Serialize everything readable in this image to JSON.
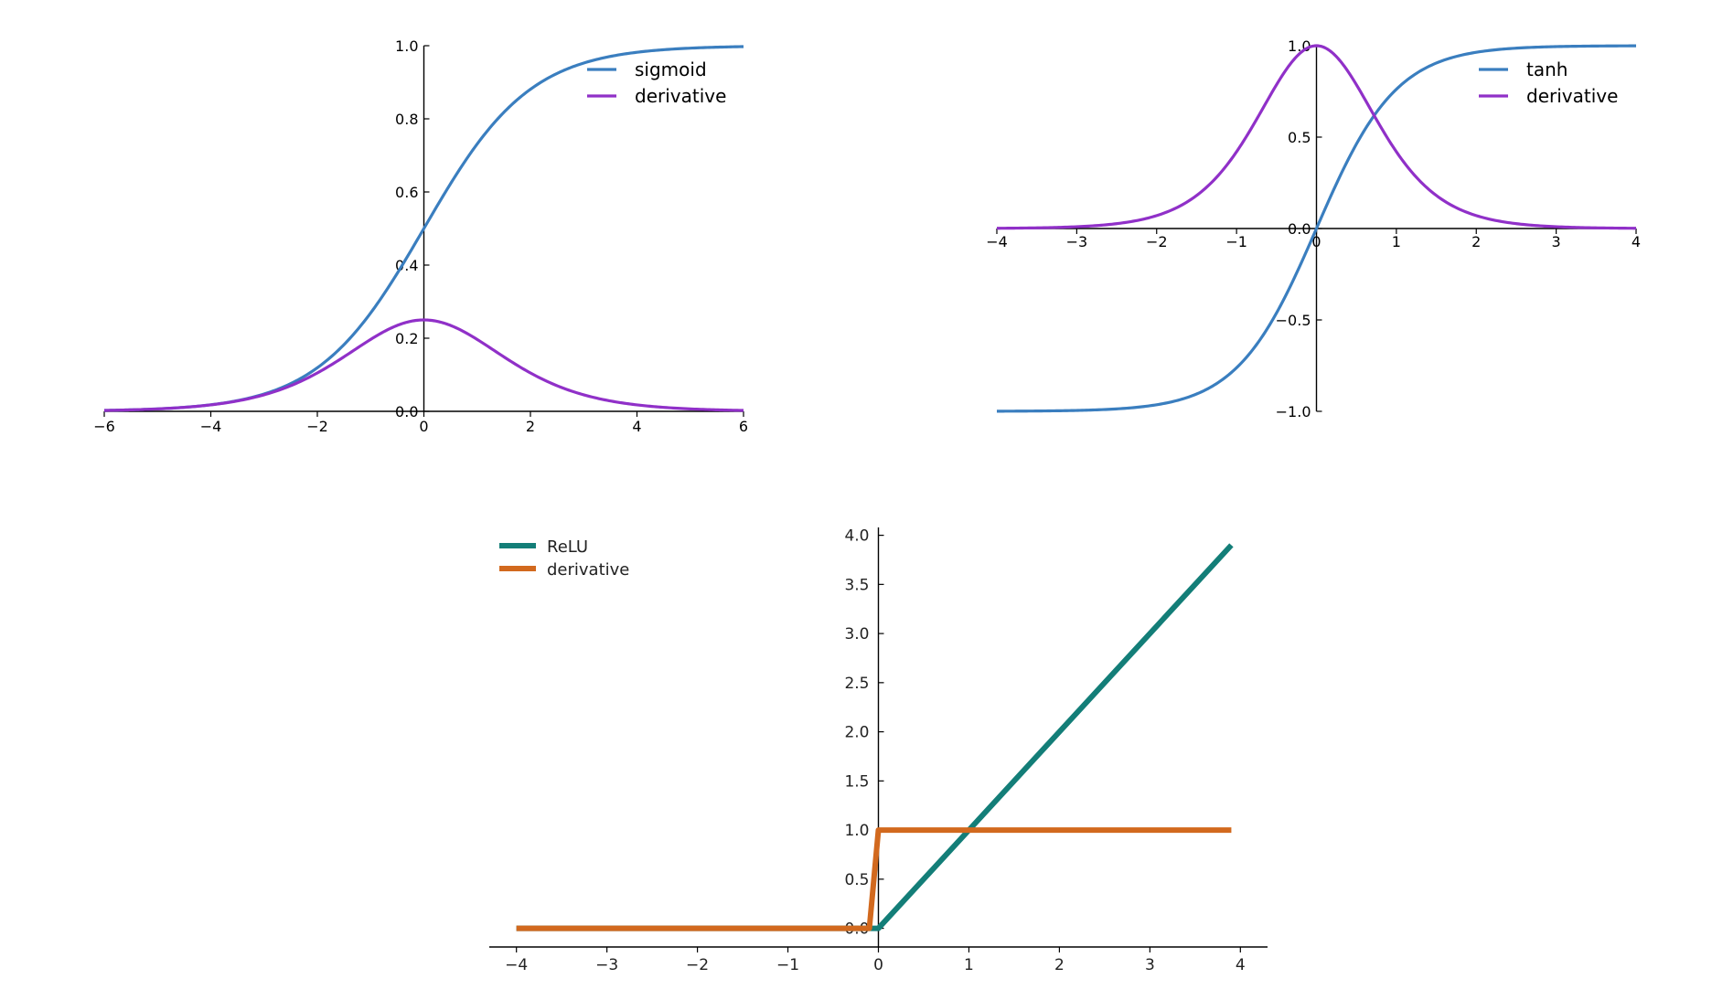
{
  "chart_data": [
    {
      "type": "line",
      "xlim": [
        -6,
        6
      ],
      "ylim": [
        0,
        1.0
      ],
      "xticks": [
        -6,
        -4,
        -2,
        0,
        2,
        4,
        6
      ],
      "xtick_labels": [
        "−6",
        "−4",
        "−2",
        "0",
        "2",
        "4",
        "6"
      ],
      "yticks": [
        0.0,
        0.2,
        0.4,
        0.6,
        0.8,
        1.0
      ],
      "ytick_labels": [
        "0.0",
        "0.2",
        "0.4",
        "0.6",
        "0.8",
        "1.0"
      ],
      "legend_position": "top-right",
      "grid": false,
      "series": [
        {
          "name": "sigmoid",
          "color": "#3a7ebf",
          "function": "sigmoid"
        },
        {
          "name": "derivative",
          "color": "#9030c8",
          "function": "sigmoid_derivative"
        }
      ],
      "x": [
        -6,
        -5,
        -4,
        -3,
        -2,
        -1,
        0,
        1,
        2,
        3,
        4,
        5,
        6
      ],
      "values": {
        "sigmoid": [
          0.002,
          0.007,
          0.018,
          0.047,
          0.119,
          0.269,
          0.5,
          0.731,
          0.881,
          0.953,
          0.982,
          0.993,
          0.998
        ],
        "derivative": [
          0.002,
          0.007,
          0.018,
          0.045,
          0.105,
          0.197,
          0.25,
          0.197,
          0.105,
          0.045,
          0.018,
          0.007,
          0.002
        ]
      }
    },
    {
      "type": "line",
      "xlim": [
        -4,
        4
      ],
      "ylim": [
        -1.0,
        1.0
      ],
      "xticks": [
        -4,
        -3,
        -2,
        -1,
        0,
        1,
        2,
        3,
        4
      ],
      "xtick_labels": [
        "−4",
        "−3",
        "−2",
        "−1",
        "0",
        "1",
        "2",
        "3",
        "4"
      ],
      "yticks": [
        -1.0,
        -0.5,
        0.0,
        0.5,
        1.0
      ],
      "ytick_labels": [
        "−1.0",
        "−0.5",
        "0.0",
        "0.5",
        "1.0"
      ],
      "legend_position": "top-right",
      "grid": false,
      "series": [
        {
          "name": "tanh",
          "color": "#3a7ebf",
          "function": "tanh"
        },
        {
          "name": "derivative",
          "color": "#9030c8",
          "function": "tanh_derivative"
        }
      ],
      "x": [
        -4,
        -3,
        -2,
        -1,
        0,
        1,
        2,
        3,
        4
      ],
      "values": {
        "tanh": [
          -0.999,
          -0.995,
          -0.964,
          -0.762,
          0.0,
          0.762,
          0.964,
          0.995,
          0.999
        ],
        "derivative": [
          0.001,
          0.01,
          0.071,
          0.42,
          1.0,
          0.42,
          0.071,
          0.01,
          0.001
        ]
      }
    },
    {
      "type": "line",
      "xlim": [
        -4.3,
        4.3
      ],
      "ylim": [
        -0.19,
        4.08
      ],
      "xticks": [
        -4,
        -3,
        -2,
        -1,
        0,
        1,
        2,
        3,
        4
      ],
      "xtick_labels": [
        "−4",
        "−3",
        "−2",
        "−1",
        "0",
        "1",
        "2",
        "3",
        "4"
      ],
      "yticks": [
        0.0,
        0.5,
        1.0,
        1.5,
        2.0,
        2.5,
        3.0,
        3.5,
        4.0
      ],
      "ytick_labels": [
        "0.0",
        "0.5",
        "1.0",
        "1.5",
        "2.0",
        "2.5",
        "3.0",
        "3.5",
        "4.0"
      ],
      "legend_position": "top-left",
      "grid": false,
      "series": [
        {
          "name": "ReLU",
          "color": "#137e78",
          "x": [
            -4,
            0,
            3.9
          ],
          "y": [
            0,
            0,
            3.9
          ]
        },
        {
          "name": "derivative",
          "color": "#d2691e",
          "x": [
            -4,
            -0.1,
            0,
            3.9
          ],
          "y": [
            0,
            0,
            1,
            1
          ]
        }
      ]
    }
  ]
}
